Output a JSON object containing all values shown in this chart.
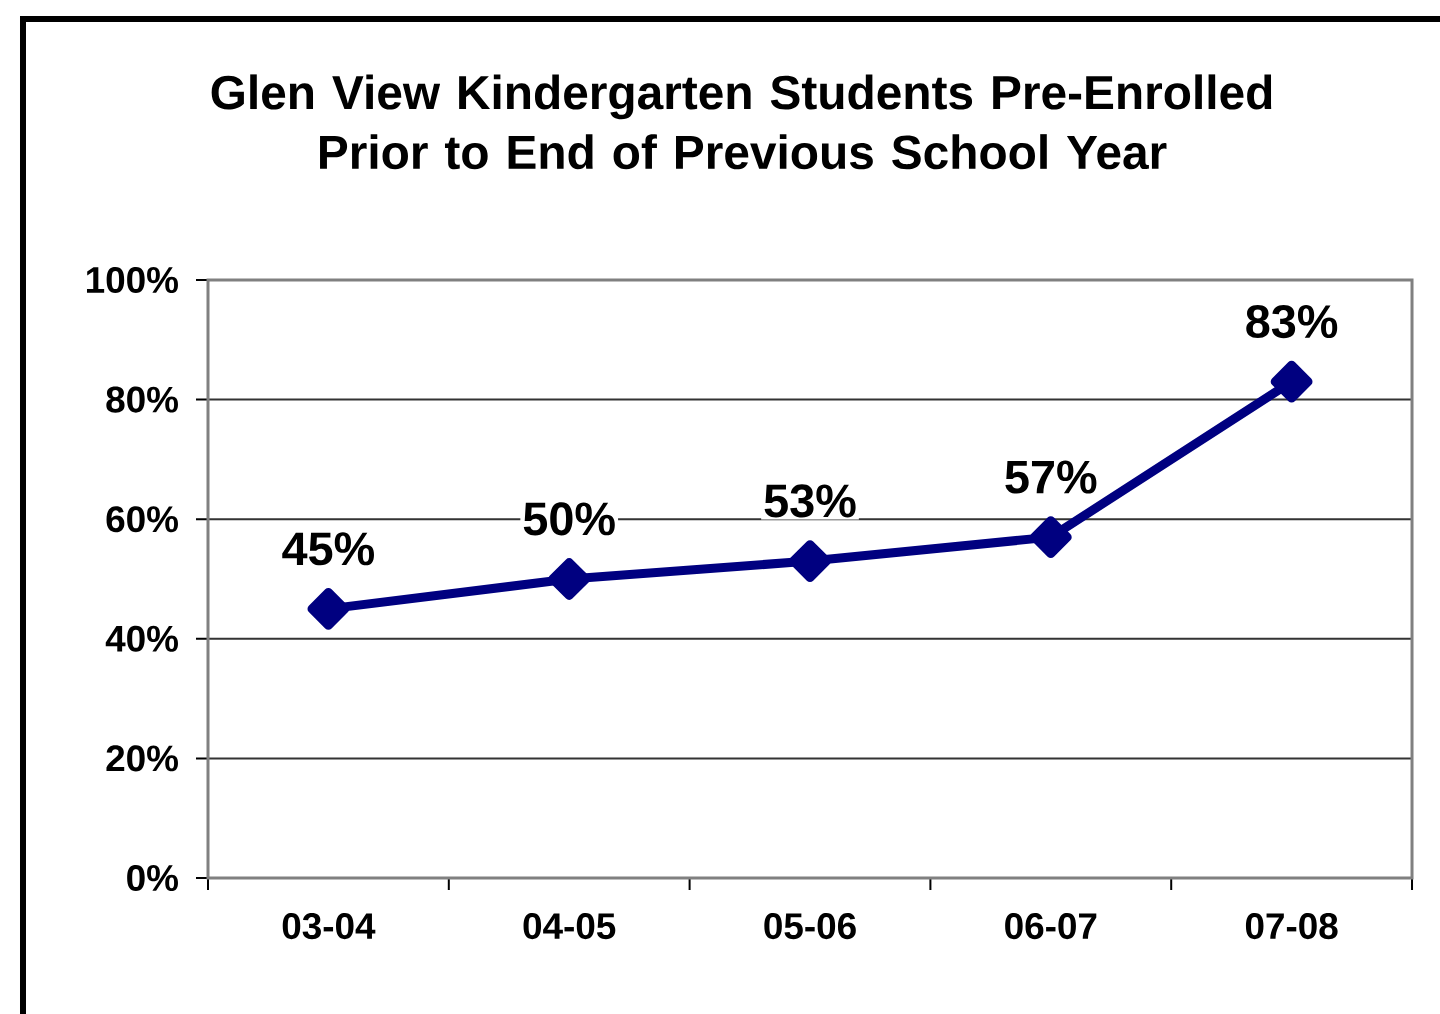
{
  "chart_data": {
    "type": "line",
    "title": "Glen View Kindergarten Students Pre-Enrolled Prior to End of Previous School Year",
    "categories": [
      "03-04",
      "04-05",
      "05-06",
      "06-07",
      "07-08"
    ],
    "values": [
      45,
      50,
      53,
      57,
      83
    ],
    "value_labels": [
      "45%",
      "50%",
      "53%",
      "57%",
      "83%"
    ],
    "color": "#000080",
    "ylim": [
      0,
      100
    ],
    "yticks": [
      {
        "value": 0,
        "label": "0%"
      },
      {
        "value": 20,
        "label": "20%"
      },
      {
        "value": 40,
        "label": "40%"
      },
      {
        "value": 60,
        "label": "60%"
      },
      {
        "value": 80,
        "label": "80%"
      },
      {
        "value": 100,
        "label": "100%"
      }
    ],
    "grid": "y",
    "marker": "diamond",
    "line_style": "solid"
  }
}
